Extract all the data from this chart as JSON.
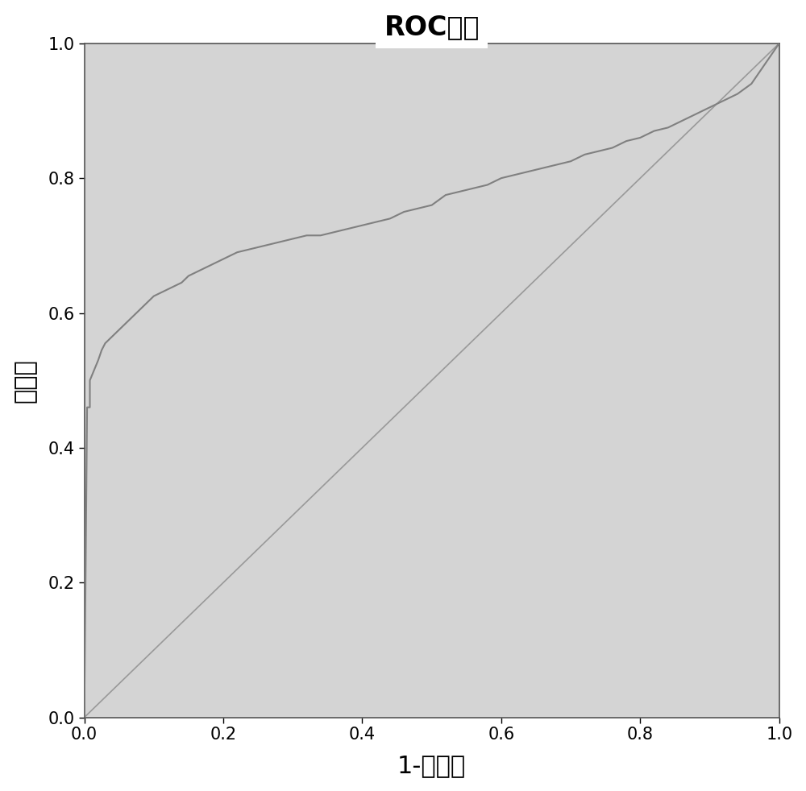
{
  "title": "ROC曲线",
  "xlabel": "1-特异性",
  "ylabel": "敏感度",
  "xlim": [
    0.0,
    1.0
  ],
  "ylim": [
    0.0,
    1.0
  ],
  "axes_facecolor": "#d4d4d4",
  "figure_facecolor": "#ffffff",
  "line_color": "#808080",
  "diagonal_color": "#999999",
  "title_fontsize": 24,
  "axis_label_fontsize": 22,
  "tick_fontsize": 15,
  "roc_x": [
    0.0,
    0.004,
    0.006,
    0.008,
    0.008,
    0.01,
    0.012,
    0.014,
    0.016,
    0.018,
    0.02,
    0.025,
    0.03,
    0.035,
    0.04,
    0.05,
    0.055,
    0.06,
    0.065,
    0.07,
    0.075,
    0.08,
    0.09,
    0.1,
    0.11,
    0.12,
    0.13,
    0.14,
    0.15,
    0.16,
    0.17,
    0.18,
    0.19,
    0.2,
    0.22,
    0.24,
    0.26,
    0.28,
    0.3,
    0.32,
    0.34,
    0.36,
    0.38,
    0.4,
    0.42,
    0.44,
    0.46,
    0.48,
    0.5,
    0.52,
    0.54,
    0.56,
    0.58,
    0.6,
    0.62,
    0.64,
    0.66,
    0.68,
    0.7,
    0.72,
    0.74,
    0.76,
    0.78,
    0.8,
    0.82,
    0.84,
    0.86,
    0.88,
    0.9,
    0.92,
    0.94,
    0.96,
    0.98,
    1.0
  ],
  "roc_y": [
    0.0,
    0.46,
    0.46,
    0.46,
    0.5,
    0.505,
    0.51,
    0.515,
    0.52,
    0.525,
    0.53,
    0.545,
    0.555,
    0.56,
    0.565,
    0.575,
    0.58,
    0.585,
    0.59,
    0.595,
    0.6,
    0.605,
    0.615,
    0.625,
    0.63,
    0.635,
    0.64,
    0.645,
    0.655,
    0.66,
    0.665,
    0.67,
    0.675,
    0.68,
    0.69,
    0.695,
    0.7,
    0.705,
    0.71,
    0.715,
    0.715,
    0.72,
    0.725,
    0.73,
    0.735,
    0.74,
    0.75,
    0.755,
    0.76,
    0.775,
    0.78,
    0.785,
    0.79,
    0.8,
    0.805,
    0.81,
    0.815,
    0.82,
    0.825,
    0.835,
    0.84,
    0.845,
    0.855,
    0.86,
    0.87,
    0.875,
    0.885,
    0.895,
    0.905,
    0.915,
    0.925,
    0.94,
    0.97,
    1.0
  ],
  "xticks": [
    0.0,
    0.2,
    0.4,
    0.6,
    0.8,
    1.0
  ],
  "yticks": [
    0.0,
    0.2,
    0.4,
    0.6,
    0.8,
    1.0
  ]
}
